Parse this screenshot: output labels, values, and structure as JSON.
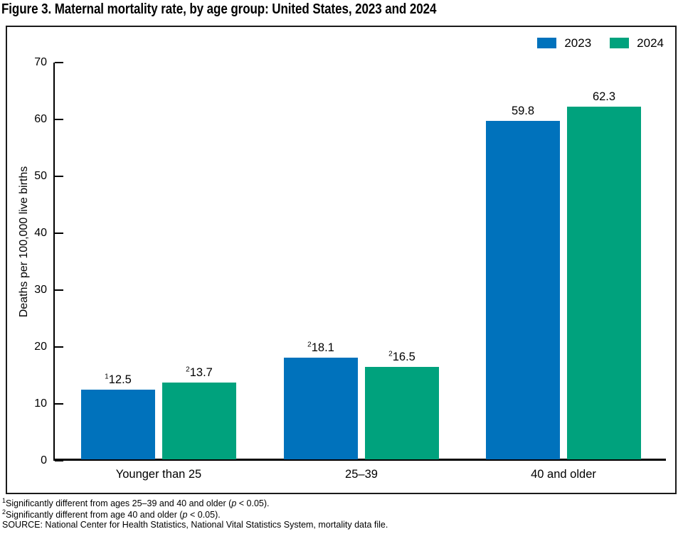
{
  "figure": {
    "footnotes": [
      {
        "sup": "1",
        "pre": "Significantly different from ages 25–39 and 40 and older (",
        "p": "p",
        "post": " < 0.05)."
      },
      {
        "sup": "2",
        "pre": "Significantly different from age 40 and older (",
        "p": "p",
        "post": " < 0.05)."
      }
    ],
    "source": "SOURCE: National Center for Health Statistics, National Vital Statistics System, mortality data file."
  },
  "chart_data": {
    "type": "bar",
    "title": "Figure 3. Maternal mortality rate, by age group: United States, 2023 and 2024",
    "categories": [
      "Younger than 25",
      "25–39",
      "40 and older"
    ],
    "series": [
      {
        "name": "2023",
        "color": "#0072BC",
        "values": [
          12.5,
          18.1,
          59.8
        ],
        "value_labels": [
          {
            "sup": "1",
            "text": "12.5"
          },
          {
            "sup": "2",
            "text": "18.1"
          },
          {
            "sup": "",
            "text": "59.8"
          }
        ]
      },
      {
        "name": "2024",
        "color": "#00A27D",
        "values": [
          13.7,
          16.5,
          62.3
        ],
        "value_labels": [
          {
            "sup": "2",
            "text": "13.7"
          },
          {
            "sup": "2",
            "text": "16.5"
          },
          {
            "sup": "",
            "text": "62.3"
          }
        ]
      }
    ],
    "xlabel": "",
    "ylabel": "Deaths per 100,000 live births",
    "ylim": [
      0,
      70
    ],
    "yticks": [
      0,
      10,
      20,
      30,
      40,
      50,
      60,
      70
    ],
    "grid": false,
    "legend_position": "top-right"
  }
}
